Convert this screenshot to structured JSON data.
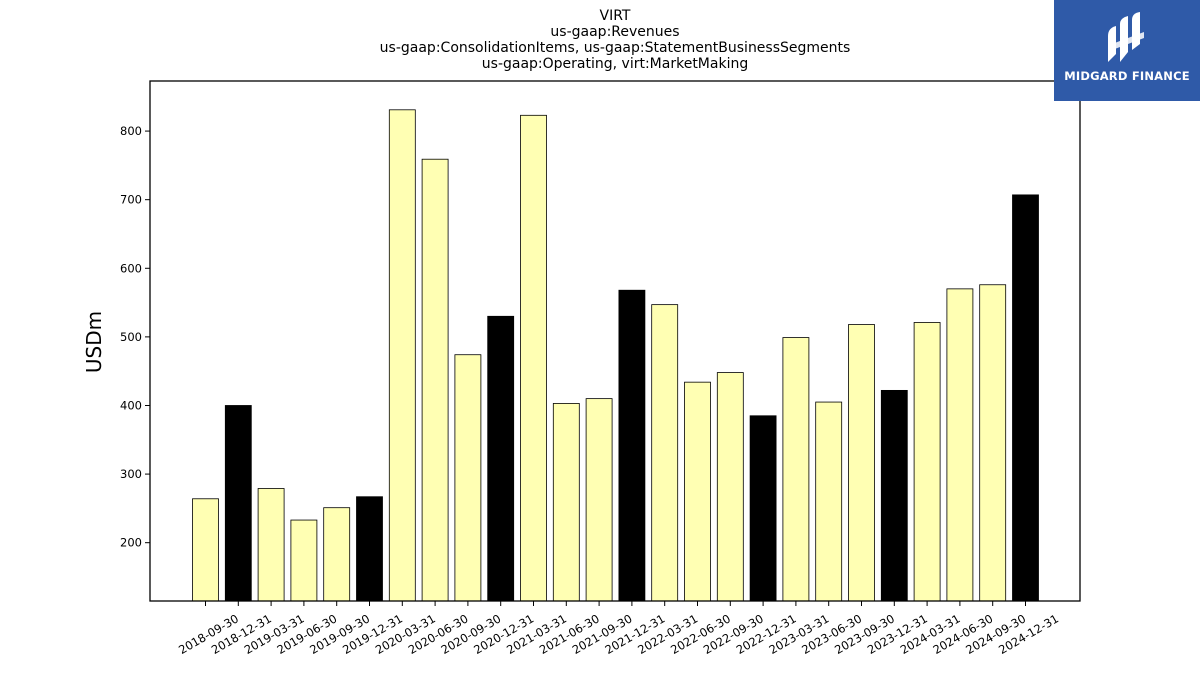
{
  "chart_data": {
    "type": "bar",
    "title_lines": [
      "VIRT",
      "us-gaap:Revenues",
      "us-gaap:ConsolidationItems, us-gaap:StatementBusinessSegments",
      "us-gaap:Operating, virt:MarketMaking"
    ],
    "xlabel": "",
    "ylabel": "USDm",
    "ylim": [
      115,
      873
    ],
    "yticks": [
      200,
      300,
      400,
      500,
      600,
      700,
      800
    ],
    "grid": false,
    "categories": [
      "2018-09-30",
      "2018-12-31",
      "2019-03-31",
      "2019-06-30",
      "2019-09-30",
      "2019-12-31",
      "2020-03-31",
      "2020-06-30",
      "2020-09-30",
      "2020-12-31",
      "2021-03-31",
      "2021-06-30",
      "2021-09-30",
      "2021-12-31",
      "2022-03-31",
      "2022-06-30",
      "2022-09-30",
      "2022-12-31",
      "2023-03-31",
      "2023-06-30",
      "2023-09-30",
      "2023-12-31",
      "2024-03-31",
      "2024-06-30",
      "2024-09-30",
      "2024-12-31"
    ],
    "values": [
      264,
      400,
      279,
      233,
      251,
      267,
      831,
      759,
      474,
      530,
      823,
      403,
      410,
      568,
      547,
      434,
      448,
      385,
      499,
      405,
      518,
      422,
      521,
      570,
      576,
      707
    ],
    "bar_colors": {
      "quarter": "#ffffb3",
      "year_end": "#000000",
      "edge": "#000000"
    }
  },
  "logo": {
    "text": "MIDGARD FINANCE",
    "background": "#2f5aa8"
  }
}
